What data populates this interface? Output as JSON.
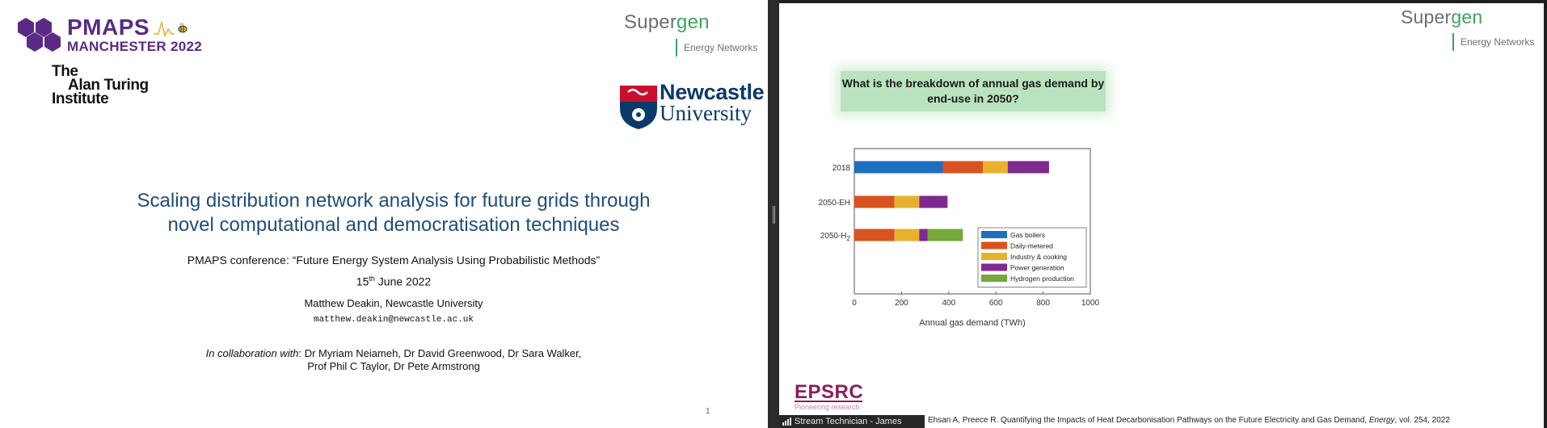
{
  "left_slide": {
    "pmaps": {
      "title": "PMAPS",
      "subtitle": "MANCHESTER 2022"
    },
    "turing": {
      "line1": "The",
      "line2": "Alan Turing",
      "line3": "Institute"
    },
    "supergen": {
      "word_a": "Super",
      "word_b": "gen",
      "sub": "Energy Networks"
    },
    "newcastle": {
      "line1": "Newcastle",
      "line2": "University"
    },
    "title_line1": "Scaling distribution network analysis for future grids through",
    "title_line2": "novel computational and democratisation techniques",
    "conference": "PMAPS conference: “Future Energy System Analysis Using Probabilistic Methods”",
    "date_day": "15",
    "date_suffix": "th",
    "date_rest": " June 2022",
    "author": "Matthew Deakin, Newcastle University",
    "email": "matthew.deakin@newcastle.ac.uk",
    "collab_label": "In collaboration with",
    "collab_rest_line1": ": Dr Myriam Neiameh, Dr David Greenwood, Dr Sara Walker,",
    "collab_line2": "Prof Phil C Taylor, Dr Pete Armstrong",
    "page_number": "1"
  },
  "right_slide": {
    "supergen": {
      "word_a": "Super",
      "word_b": "gen",
      "sub": "Energy Networks"
    },
    "question": "What is the breakdown of annual gas demand by end-use in 2050?",
    "epsrc": {
      "name": "EPSRC",
      "tagline": "Pioneering research"
    },
    "citation_plain": "Ehsan A, Preece R. Quantifying the Impacts of Heat Decarbonisation Pathways on the Future Electricity and Gas Demand, ",
    "citation_journal": "Energy",
    "citation_tail": ", vol. 254, 2022",
    "stream_label": "Stream Technician - James"
  },
  "chart_data": {
    "type": "bar",
    "orientation": "horizontal",
    "stacked": true,
    "categories": [
      "2018",
      "2050-EH",
      "2050-H2"
    ],
    "category_labels": [
      {
        "main": "2018",
        "sub": ""
      },
      {
        "main": "2050-EH",
        "sub": ""
      },
      {
        "main": "2050-H",
        "sub": "2"
      }
    ],
    "series": [
      {
        "name": "Gas boilers",
        "color": "#1f6fbf",
        "values": [
          375,
          0,
          0
        ]
      },
      {
        "name": "Daily-metered",
        "color": "#d9531e",
        "values": [
          170,
          170,
          170
        ]
      },
      {
        "name": "Industry & cooking",
        "color": "#e8b12b",
        "values": [
          105,
          105,
          105
        ]
      },
      {
        "name": "Power generation",
        "color": "#7e2a8e",
        "values": [
          175,
          120,
          35
        ]
      },
      {
        "name": "Hydrogen production",
        "color": "#76a83a",
        "values": [
          0,
          0,
          150
        ]
      }
    ],
    "xlabel": "Annual gas demand (TWh)",
    "ylabel": "",
    "xlim": [
      0,
      1000
    ],
    "xticks": [
      "0",
      "200",
      "400",
      "600",
      "800",
      "1000"
    ],
    "grid": false,
    "legend": "bottom-right inside"
  }
}
